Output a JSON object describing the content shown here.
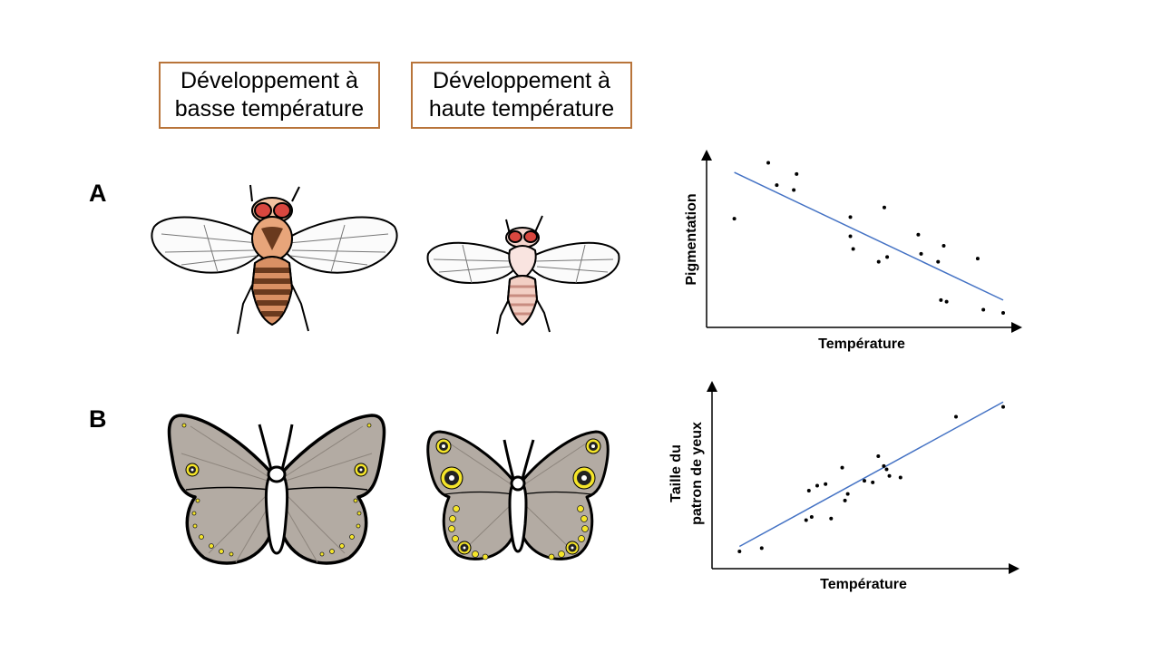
{
  "headers": [
    {
      "line1": "Développement à",
      "line2": "basse température"
    },
    {
      "line1": "Développement à",
      "line2": "haute température"
    }
  ],
  "rows": [
    {
      "label": "A"
    },
    {
      "label": "B"
    }
  ],
  "colors": {
    "header_border": "#b8743a",
    "trend_line": "#4472c4",
    "fly_low_body": "#7b3f1a",
    "fly_high_body": "#f2cfc4",
    "butterfly_wing": "#b3aba3",
    "eyespot_ring": "#f5e52a"
  },
  "chart_data": [
    {
      "type": "scatter",
      "title": "",
      "xlabel": "Température",
      "ylabel": "Pigmentation",
      "xlim": [
        0,
        100
      ],
      "ylim": [
        0,
        100
      ],
      "trend": {
        "x": [
          5,
          100
        ],
        "y": [
          92,
          12
        ]
      },
      "points": [
        {
          "x": 5,
          "y": 63
        },
        {
          "x": 17,
          "y": 98
        },
        {
          "x": 20,
          "y": 84
        },
        {
          "x": 26,
          "y": 81
        },
        {
          "x": 27,
          "y": 91
        },
        {
          "x": 46,
          "y": 64
        },
        {
          "x": 46,
          "y": 52
        },
        {
          "x": 47,
          "y": 44
        },
        {
          "x": 56,
          "y": 36
        },
        {
          "x": 58,
          "y": 70
        },
        {
          "x": 59,
          "y": 39
        },
        {
          "x": 70,
          "y": 53
        },
        {
          "x": 71,
          "y": 41
        },
        {
          "x": 77,
          "y": 36
        },
        {
          "x": 79,
          "y": 46
        },
        {
          "x": 78,
          "y": 12
        },
        {
          "x": 80,
          "y": 11
        },
        {
          "x": 91,
          "y": 38
        },
        {
          "x": 93,
          "y": 6
        },
        {
          "x": 100,
          "y": 4
        }
      ]
    },
    {
      "type": "scatter",
      "title": "",
      "xlabel": "Température",
      "ylabel": "Taille du patron de yeux",
      "ylabel_lines": [
        "Taille du",
        "patron de yeux"
      ],
      "xlim": [
        0,
        100
      ],
      "ylim": [
        0,
        100
      ],
      "trend": {
        "x": [
          5,
          100
        ],
        "y": [
          8,
          96
        ]
      },
      "points": [
        {
          "x": 5,
          "y": 5
        },
        {
          "x": 13,
          "y": 7
        },
        {
          "x": 29,
          "y": 24
        },
        {
          "x": 31,
          "y": 26
        },
        {
          "x": 38,
          "y": 25
        },
        {
          "x": 30,
          "y": 42
        },
        {
          "x": 33,
          "y": 45
        },
        {
          "x": 36,
          "y": 46
        },
        {
          "x": 43,
          "y": 36
        },
        {
          "x": 44,
          "y": 40
        },
        {
          "x": 42,
          "y": 56
        },
        {
          "x": 50,
          "y": 48
        },
        {
          "x": 53,
          "y": 47
        },
        {
          "x": 55,
          "y": 63
        },
        {
          "x": 57,
          "y": 57
        },
        {
          "x": 58,
          "y": 55
        },
        {
          "x": 59,
          "y": 51
        },
        {
          "x": 63,
          "y": 50
        },
        {
          "x": 83,
          "y": 87
        },
        {
          "x": 100,
          "y": 93
        }
      ]
    }
  ]
}
